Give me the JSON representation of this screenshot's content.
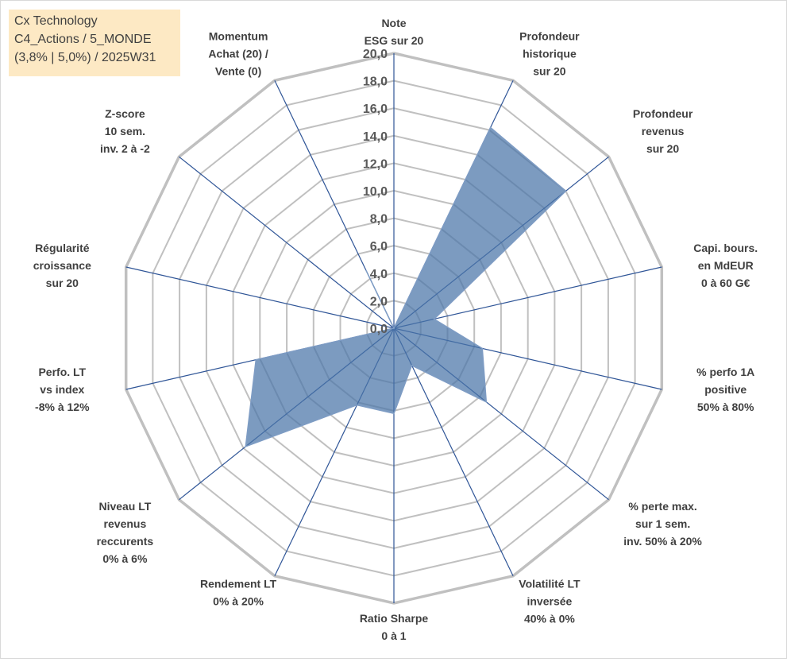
{
  "info": {
    "line1": "Cx Technology",
    "line2": "C4_Actions / 5_MONDE",
    "line3": "(3,8% | 5,0%) / 2025W31"
  },
  "chart_data": {
    "type": "radar",
    "rlim": [
      0,
      20
    ],
    "rticks": [
      "0,0",
      "2,0",
      "4,0",
      "6,0",
      "8,0",
      "10,0",
      "12,0",
      "14,0",
      "16,0",
      "18,0",
      "20,0"
    ],
    "grid": true,
    "legend": "none",
    "colors": {
      "fill": "#4a74a8",
      "stroke": "#7e9cc4",
      "spoke": "#2f5597",
      "grid": "#c0c0c0"
    },
    "axes": [
      {
        "label": [
          "Note",
          "ESG sur 20"
        ]
      },
      {
        "label": [
          "Profondeur",
          "historique",
          "sur 20"
        ]
      },
      {
        "label": [
          "Profondeur",
          "revenus",
          "sur 20"
        ]
      },
      {
        "label": [
          "Capi. bours.",
          "en MdEUR",
          "0 à 60 G€"
        ]
      },
      {
        "label": [
          "% perfo 1A",
          "positive",
          "50% à 80%"
        ]
      },
      {
        "label": [
          "% perte max.",
          "sur 1 sem.",
          "inv. 50% à 20%"
        ]
      },
      {
        "label": [
          "Volatilité LT",
          "inversée",
          "40% à 0%"
        ]
      },
      {
        "label": [
          "Ratio Sharpe",
          "0 à 1"
        ]
      },
      {
        "label": [
          "Rendement LT",
          "0% à 20%"
        ]
      },
      {
        "label": [
          "Niveau LT",
          "revenus",
          "reccurents",
          "0% à 6%"
        ]
      },
      {
        "label": [
          "Perfo. LT",
          "vs index",
          "-8% à 12%"
        ]
      },
      {
        "label": [
          "Régularité",
          "croissance",
          "sur 20"
        ]
      },
      {
        "label": [
          "Z-score",
          "10 sem.",
          "inv. 2 à -2"
        ]
      },
      {
        "label": [
          "Momentum",
          "Achat (20) /",
          "Vente (0)"
        ]
      }
    ],
    "series": [
      {
        "values": [
          0,
          16.2,
          16.0,
          3.0,
          6.6,
          8.6,
          3.0,
          6.2,
          6.2,
          13.8,
          10.3,
          0,
          0,
          4.7
        ]
      }
    ]
  }
}
